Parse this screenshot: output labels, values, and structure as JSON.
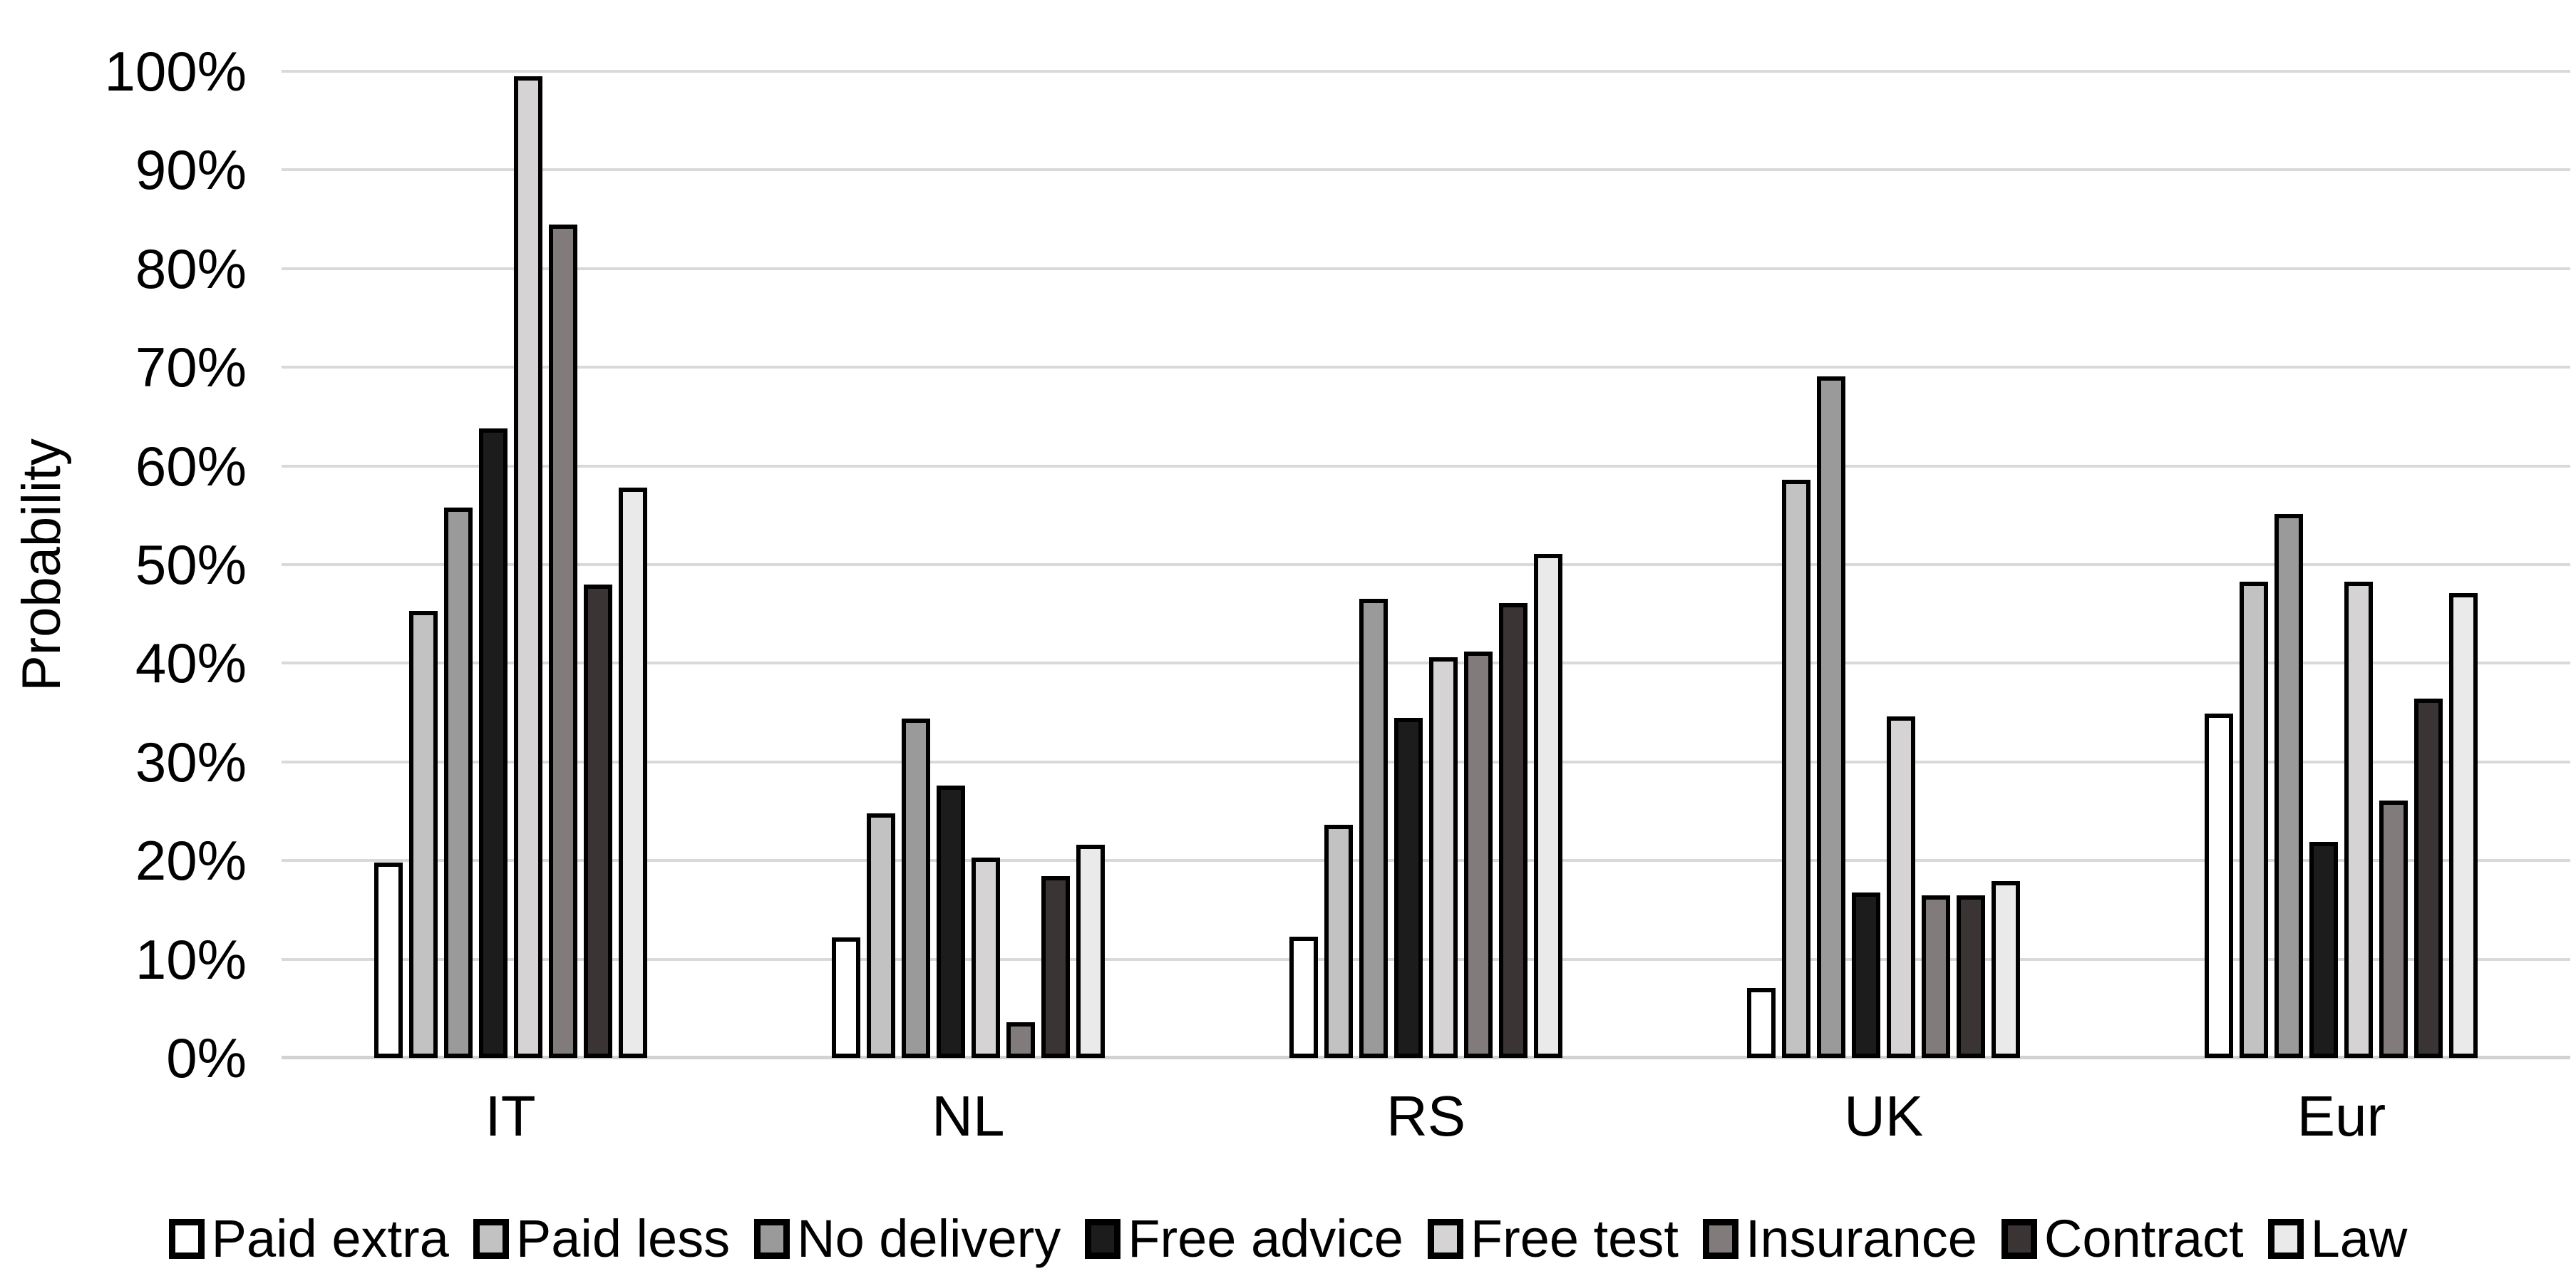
{
  "chart_data": {
    "type": "bar",
    "title": "",
    "ylabel": "Probability",
    "xlabel": "",
    "categories": [
      "IT",
      "NL",
      "RS",
      "UK",
      "Eur"
    ],
    "y_ticks": [
      "0%",
      "10%",
      "20%",
      "30%",
      "40%",
      "50%",
      "60%",
      "70%",
      "80%",
      "90%",
      "100%"
    ],
    "ylim": [
      0,
      100
    ],
    "grid": true,
    "grid_color": "#D9D9D9",
    "axis_line_color": "#D2D2D2",
    "bar_border_color": "#000000",
    "legend_position": "bottom",
    "series": [
      {
        "name": "Paid extra",
        "color": "#FFFFFF",
        "values": [
          19.8,
          12.2,
          12.3,
          7.1,
          34.9
        ]
      },
      {
        "name": "Paid less",
        "color": "#C2C2C2",
        "values": [
          45.3,
          24.8,
          23.6,
          58.6,
          48.3
        ]
      },
      {
        "name": "No delivery",
        "color": "#9A9A9A",
        "values": [
          55.8,
          34.4,
          46.5,
          69.1,
          55.1
        ]
      },
      {
        "name": "Free advice",
        "color": "#1C1C1C",
        "values": [
          63.8,
          27.6,
          34.5,
          16.8,
          21.9
        ]
      },
      {
        "name": "Free test",
        "color": "#D5D3D3",
        "values": [
          99.5,
          20.3,
          40.6,
          34.6,
          48.3
        ]
      },
      {
        "name": "Insurance",
        "color": "#827B7B",
        "values": [
          84.5,
          3.6,
          41.2,
          16.5,
          26.1
        ]
      },
      {
        "name": "Contract",
        "color": "#3A3435",
        "values": [
          48.0,
          18.4,
          46.1,
          16.5,
          36.4
        ]
      },
      {
        "name": "Law",
        "color": "#EBEAEA",
        "values": [
          57.8,
          21.6,
          51.1,
          17.9,
          47.1
        ]
      }
    ]
  }
}
